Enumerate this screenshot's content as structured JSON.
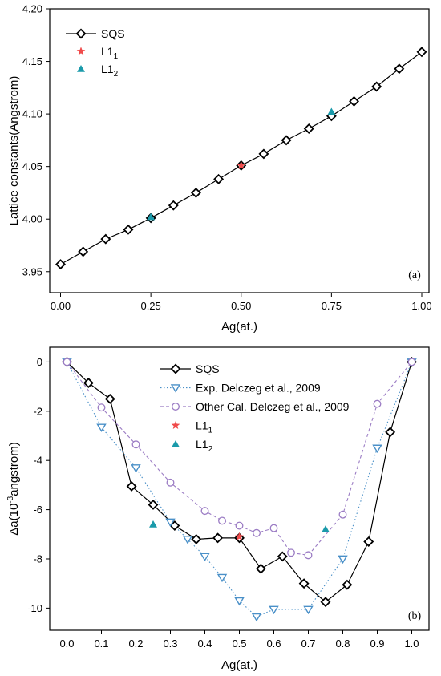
{
  "chart_data": [
    {
      "type": "line",
      "panel_label": "(a)",
      "xlabel": "Ag(at.)",
      "ylabel": "Lattice constants(Angstrom)",
      "xlim": [
        -0.03,
        1.02
      ],
      "ylim": [
        3.93,
        4.2
      ],
      "xticks": [
        "0.00",
        "0.25",
        "0.50",
        "0.75",
        "1.00"
      ],
      "xtick_values": [
        0,
        0.25,
        0.5,
        0.75,
        1.0
      ],
      "yticks": [
        "3.95",
        "4.00",
        "4.05",
        "4.10",
        "4.15",
        "4.20"
      ],
      "ytick_values": [
        3.95,
        4.0,
        4.05,
        4.1,
        4.15,
        4.2
      ],
      "grid": false,
      "legend_position": "top-left",
      "series": [
        {
          "name": "SQS",
          "label_sub": "",
          "marker": "diamond-open",
          "line": "solid",
          "color": "#000000",
          "x": [
            0,
            0.0625,
            0.125,
            0.1875,
            0.25,
            0.3125,
            0.375,
            0.4375,
            0.5,
            0.5625,
            0.625,
            0.6875,
            0.75,
            0.8125,
            0.875,
            0.9375,
            1.0
          ],
          "y": [
            3.957,
            3.969,
            3.981,
            3.99,
            4.001,
            4.013,
            4.025,
            4.038,
            4.051,
            4.062,
            4.075,
            4.086,
            4.098,
            4.112,
            4.126,
            4.143,
            4.159
          ]
        },
        {
          "name": "L1",
          "label_sub": "1",
          "marker": "star",
          "line": "none",
          "color": "#f04b4b",
          "x": [
            0.5
          ],
          "y": [
            4.051
          ]
        },
        {
          "name": "L1",
          "label_sub": "2",
          "marker": "triangle-up",
          "line": "none",
          "color": "#1a9aaa",
          "x": [
            0.25,
            0.75
          ],
          "y": [
            4.002,
            4.102
          ]
        }
      ]
    },
    {
      "type": "line",
      "panel_label": "(b)",
      "xlabel": "Ag(at.)",
      "ylabel_main": "Δa(10",
      "ylabel_sup": "-3",
      "ylabel_tail": "angstrom)",
      "xlim": [
        -0.05,
        1.05
      ],
      "ylim": [
        -10.9,
        0.6
      ],
      "xticks": [
        "0.0",
        "0.1",
        "0.2",
        "0.3",
        "0.4",
        "0.5",
        "0.6",
        "0.7",
        "0.8",
        "0.9",
        "1.0"
      ],
      "xtick_values": [
        0,
        0.1,
        0.2,
        0.3,
        0.4,
        0.5,
        0.6,
        0.7,
        0.8,
        0.9,
        1.0
      ],
      "yticks": [
        "0",
        "-2",
        "-4",
        "-6",
        "-8",
        "-10"
      ],
      "ytick_values": [
        0,
        -2,
        -4,
        -6,
        -8,
        -10
      ],
      "grid": false,
      "legend_position": "top-center",
      "series": [
        {
          "name": "SQS",
          "label_sub": "",
          "marker": "diamond-open",
          "line": "solid",
          "color": "#000000",
          "x": [
            0,
            0.0625,
            0.125,
            0.1875,
            0.25,
            0.3125,
            0.375,
            0.4375,
            0.5,
            0.5625,
            0.625,
            0.6875,
            0.75,
            0.8125,
            0.875,
            0.9375,
            1.0
          ],
          "y": [
            0,
            -0.85,
            -1.5,
            -5.05,
            -5.8,
            -6.65,
            -7.2,
            -7.15,
            -7.15,
            -8.4,
            -7.9,
            -9.0,
            -9.75,
            -9.05,
            -7.3,
            -2.85,
            0
          ]
        },
        {
          "name": "Exp. Delczeg et al., 2009",
          "label_sub": "",
          "marker": "triangle-down-open",
          "line": "dotted",
          "color": "#4a90c8",
          "x": [
            0,
            0.1,
            0.2,
            0.3,
            0.35,
            0.4,
            0.45,
            0.5,
            0.55,
            0.6,
            0.7,
            0.8,
            0.9,
            1.0
          ],
          "y": [
            0,
            -2.65,
            -4.3,
            -6.5,
            -7.2,
            -7.9,
            -8.75,
            -9.7,
            -10.35,
            -10.05,
            -10.05,
            -8.0,
            -3.5,
            0
          ]
        },
        {
          "name": "Other Cal. Delczeg et al., 2009",
          "label_sub": "",
          "marker": "circle-open",
          "line": "dashed",
          "color": "#9b7cc4",
          "x": [
            0,
            0.1,
            0.2,
            0.3,
            0.4,
            0.45,
            0.5,
            0.55,
            0.6,
            0.65,
            0.7,
            0.8,
            0.9,
            1.0
          ],
          "y": [
            0,
            -1.85,
            -3.35,
            -4.9,
            -6.05,
            -6.45,
            -6.65,
            -6.95,
            -6.75,
            -7.75,
            -7.85,
            -6.2,
            -1.7,
            0
          ]
        },
        {
          "name": "L1",
          "label_sub": "1",
          "marker": "star",
          "line": "none",
          "color": "#f04b4b",
          "x": [
            0.5
          ],
          "y": [
            -7.1
          ]
        },
        {
          "name": "L1",
          "label_sub": "2",
          "marker": "triangle-up",
          "line": "none",
          "color": "#1a9aaa",
          "x": [
            0.25,
            0.75
          ],
          "y": [
            -6.6,
            -6.8
          ]
        }
      ]
    }
  ]
}
